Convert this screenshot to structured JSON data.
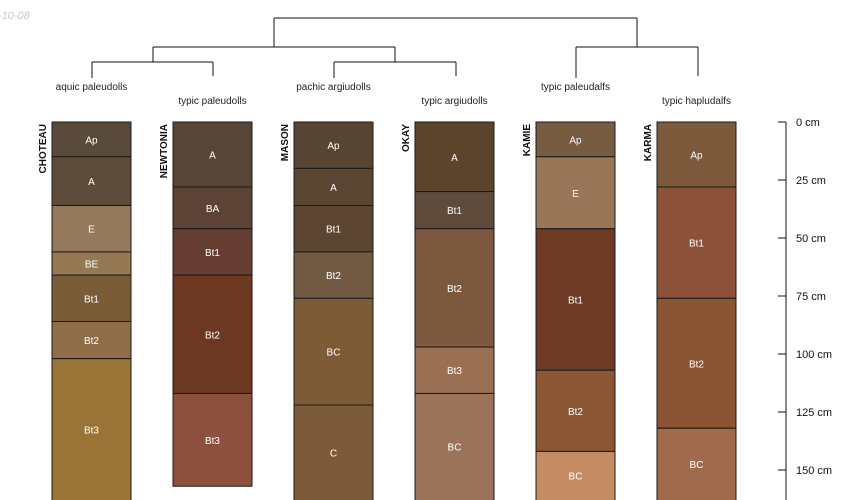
{
  "date_fragment": "-10-08",
  "depth_scale": {
    "unit": "cm",
    "ticks": [
      {
        "value": 0,
        "label": "0 cm"
      },
      {
        "value": 25,
        "label": "25 cm"
      },
      {
        "value": 50,
        "label": "50 cm"
      },
      {
        "value": 75,
        "label": "75 cm"
      },
      {
        "value": 100,
        "label": "100 cm"
      },
      {
        "value": 125,
        "label": "125 cm"
      },
      {
        "value": 150,
        "label": "150 cm"
      }
    ]
  },
  "profiles": [
    {
      "name": "CHOTEAU",
      "taxon": "aquic paleudolls",
      "horizons": [
        {
          "label": "Ap",
          "top": 0,
          "bottom": 15,
          "color": "#5a4a3c"
        },
        {
          "label": "A",
          "top": 15,
          "bottom": 36,
          "color": "#5e4c3a"
        },
        {
          "label": "E",
          "top": 36,
          "bottom": 56,
          "color": "#94795c"
        },
        {
          "label": "BE",
          "top": 56,
          "bottom": 66,
          "color": "#957854"
        },
        {
          "label": "Bt1",
          "top": 66,
          "bottom": 86,
          "color": "#7a5c38"
        },
        {
          "label": "Bt2",
          "top": 86,
          "bottom": 102,
          "color": "#8e6d48"
        },
        {
          "label": "Bt3",
          "top": 102,
          "bottom": 165,
          "color": "#9a7337"
        }
      ]
    },
    {
      "name": "NEWTONIA",
      "taxon": "typic paleudolls",
      "horizons": [
        {
          "label": "A",
          "top": 0,
          "bottom": 28,
          "color": "#574638"
        },
        {
          "label": "BA",
          "top": 28,
          "bottom": 46,
          "color": "#5c4336"
        },
        {
          "label": "Bt1",
          "top": 46,
          "bottom": 66,
          "color": "#653d32"
        },
        {
          "label": "Bt2",
          "top": 66,
          "bottom": 117,
          "color": "#6d3822"
        },
        {
          "label": "Bt3",
          "top": 117,
          "bottom": 157,
          "color": "#8b513e"
        }
      ]
    },
    {
      "name": "MASON",
      "taxon": "pachic argiudolls",
      "horizons": [
        {
          "label": "Ap",
          "top": 0,
          "bottom": 20,
          "color": "#574534"
        },
        {
          "label": "A",
          "top": 20,
          "bottom": 36,
          "color": "#5a4632"
        },
        {
          "label": "Bt1",
          "top": 36,
          "bottom": 56,
          "color": "#5c4631"
        },
        {
          "label": "Bt2",
          "top": 56,
          "bottom": 76,
          "color": "#735b43"
        },
        {
          "label": "BC",
          "top": 76,
          "bottom": 122,
          "color": "#7d5b36"
        },
        {
          "label": "C",
          "top": 122,
          "bottom": 165,
          "color": "#7d5b3a"
        }
      ]
    },
    {
      "name": "OKAY",
      "taxon": "typic argiudolls",
      "horizons": [
        {
          "label": "A",
          "top": 0,
          "bottom": 30,
          "color": "#5b432c"
        },
        {
          "label": "Bt1",
          "top": 30,
          "bottom": 46,
          "color": "#5f4b3c"
        },
        {
          "label": "Bt2",
          "top": 46,
          "bottom": 97,
          "color": "#7b583e"
        },
        {
          "label": "Bt3",
          "top": 97,
          "bottom": 117,
          "color": "#9a7055"
        },
        {
          "label": "BC",
          "top": 117,
          "bottom": 165,
          "color": "#9b735a"
        }
      ]
    },
    {
      "name": "KAMIE",
      "taxon": "typic paleudalfs",
      "horizons": [
        {
          "label": "Ap",
          "top": 0,
          "bottom": 15,
          "color": "#775c42"
        },
        {
          "label": "E",
          "top": 15,
          "bottom": 46,
          "color": "#9a7658"
        },
        {
          "label": "Bt1",
          "top": 46,
          "bottom": 107,
          "color": "#6e3a24"
        },
        {
          "label": "Bt2",
          "top": 107,
          "bottom": 142,
          "color": "#8b5634"
        },
        {
          "label": "BC",
          "top": 142,
          "bottom": 165,
          "color": "#c48c63"
        }
      ]
    },
    {
      "name": "KARMA",
      "taxon": "typic hapludalfs",
      "horizons": [
        {
          "label": "Ap",
          "top": 0,
          "bottom": 28,
          "color": "#7d5a3c"
        },
        {
          "label": "Bt1",
          "top": 28,
          "bottom": 76,
          "color": "#8c5138"
        },
        {
          "label": "Bt2",
          "top": 76,
          "bottom": 132,
          "color": "#8b5433"
        },
        {
          "label": "BC",
          "top": 132,
          "bottom": 165,
          "color": "#a06b4c"
        }
      ]
    }
  ]
}
